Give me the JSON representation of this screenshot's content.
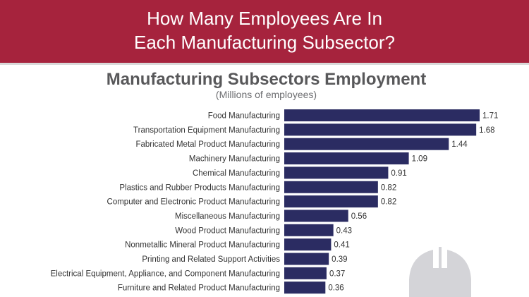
{
  "colors": {
    "banner": "#a6233d",
    "bar": "#2b2c62",
    "label_text": "#333333",
    "watermark": "#d4d4d8"
  },
  "header": {
    "title": "How Many Employees Are In\nEach Manufacturing Subsector?"
  },
  "decoration": {
    "icon": "hard-hat-icon"
  },
  "chart_data": {
    "type": "bar",
    "orientation": "horizontal",
    "title": "Manufacturing Subsectors Employment",
    "subtitle": "(Millions of employees)",
    "xlabel": "",
    "ylabel": "",
    "xlim": [
      0,
      1.75
    ],
    "grid": false,
    "legend": "none",
    "categories": [
      "Food Manufacturing",
      "Transportation Equipment Manufacturing",
      "Fabricated Metal Product Manufacturing",
      "Machinery Manufacturing",
      "Chemical Manufacturing",
      "Plastics and Rubber Products Manufacturing",
      "Computer and Electronic Product Manufacturing",
      "Miscellaneous Manufacturing",
      "Wood Product Manufacturing",
      "Nonmetallic Mineral Product Manufacturing",
      "Printing and Related Support Activities",
      "Electrical Equipment, Appliance, and Component Manufacturing",
      "Furniture and Related Product Manufacturing"
    ],
    "values": [
      1.71,
      1.68,
      1.44,
      1.09,
      0.91,
      0.82,
      0.82,
      0.56,
      0.43,
      0.41,
      0.39,
      0.37,
      0.36
    ]
  }
}
